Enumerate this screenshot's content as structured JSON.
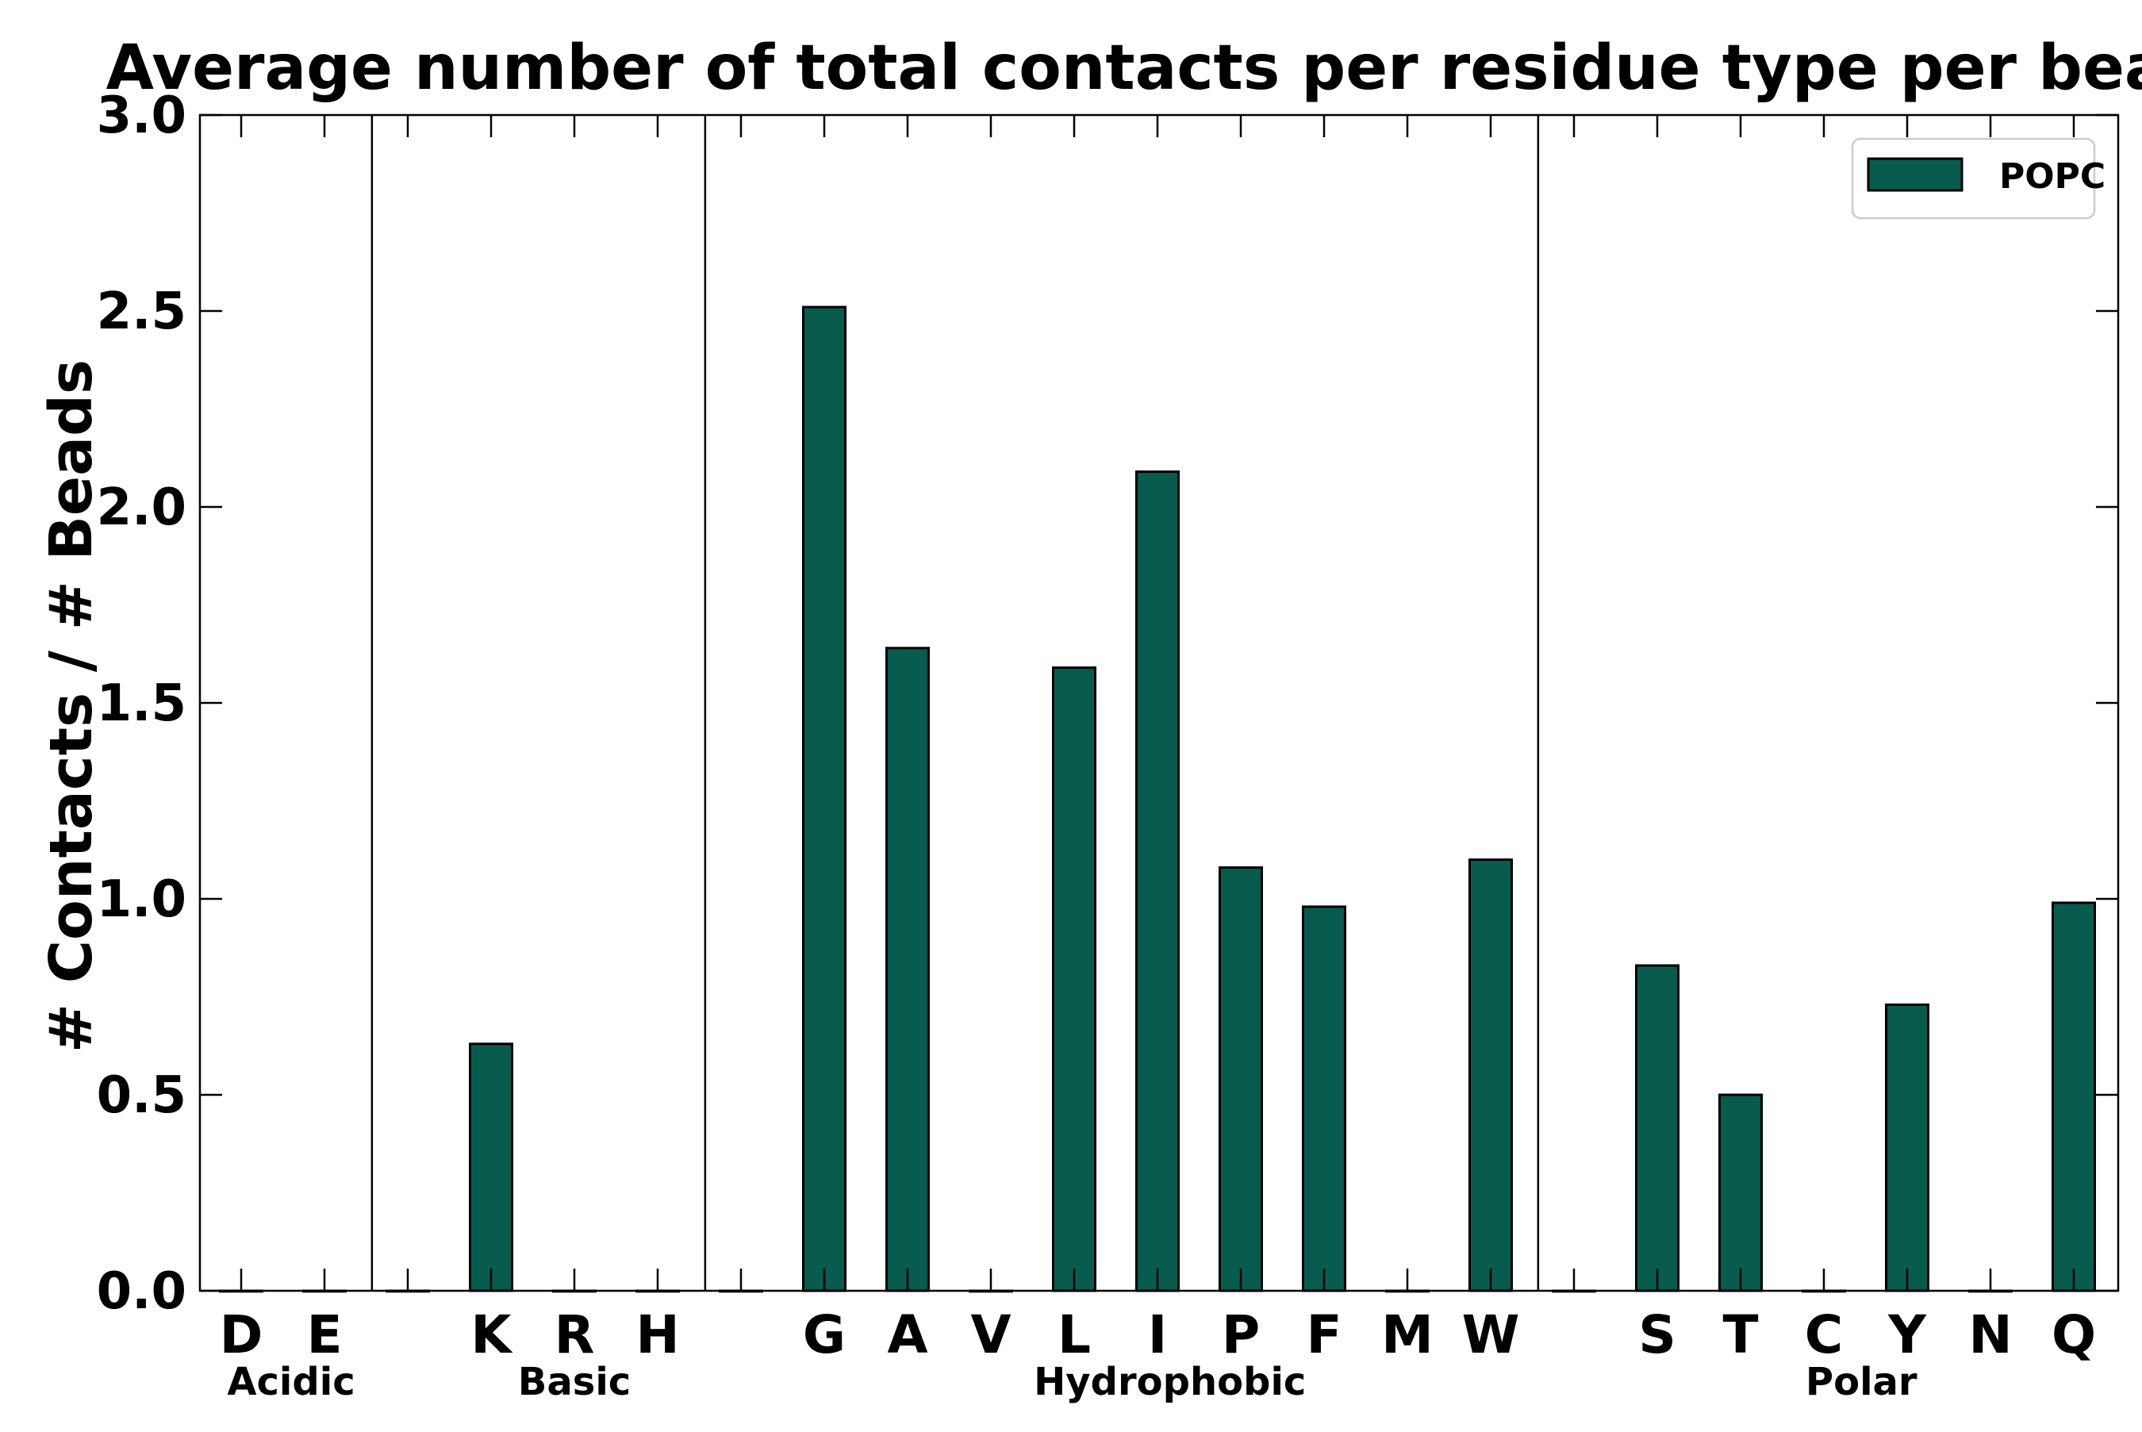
{
  "chart_data": {
    "type": "bar",
    "title": "Average number of total contacts per residue type per bead",
    "xlabel": "",
    "ylabel": "# Contacts / # Beads",
    "ylim": [
      0,
      3.0
    ],
    "yticks": [
      "0.0",
      "0.5",
      "1.0",
      "1.5",
      "2.0",
      "2.5",
      "3.0"
    ],
    "categories": [
      "D",
      "E",
      "",
      "K",
      "R",
      "H",
      "",
      "G",
      "A",
      "V",
      "L",
      "I",
      "P",
      "F",
      "M",
      "W",
      "",
      "S",
      "T",
      "C",
      "Y",
      "N",
      "Q"
    ],
    "series": [
      {
        "name": "POPC",
        "color": "#075c4e",
        "values": [
          0,
          0,
          0,
          0.63,
          0,
          0,
          0,
          2.51,
          1.64,
          0,
          1.59,
          2.09,
          1.08,
          0.98,
          0,
          1.1,
          0,
          0.83,
          0.5,
          0,
          0.73,
          0,
          0.99
        ]
      }
    ],
    "groups": [
      {
        "label": "Acidic",
        "separator_after_index": 2
      },
      {
        "label": "Basic",
        "separator_after_index": 6
      },
      {
        "label": "Hydrophobic",
        "separator_after_index": 16
      },
      {
        "label": "Polar",
        "separator_after_index": null
      }
    ],
    "group_label_positions": [
      0.6,
      4,
      11.15,
      19.45
    ],
    "legend": {
      "placement": "top-right",
      "entries": [
        "POPC"
      ]
    },
    "grid": false
  }
}
